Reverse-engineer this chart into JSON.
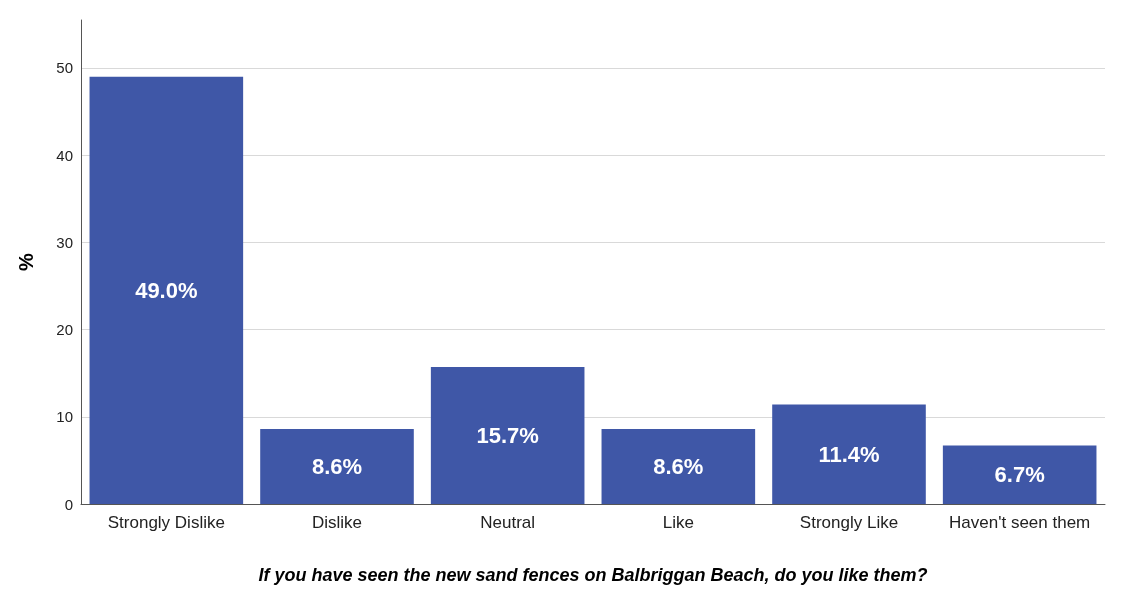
{
  "chart_data": {
    "type": "bar",
    "xlabel": "If you have seen the new sand fences on Balbriggan Beach, do you like them?",
    "ylabel": "%",
    "categories": [
      "Strongly Dislike",
      "Dislike",
      "Neutral",
      "Like",
      "Strongly Like",
      "Haven't seen them"
    ],
    "values": [
      49.0,
      8.6,
      15.7,
      8.6,
      11.4,
      6.7
    ],
    "value_labels": [
      "49.0%",
      "8.6%",
      "15.7%",
      "8.6%",
      "11.4%",
      "6.7%"
    ],
    "color": "#3f57a7",
    "ylim": [
      0,
      55.5
    ],
    "yticks": [
      0,
      10,
      20,
      30,
      40,
      50
    ],
    "grid": "y"
  }
}
